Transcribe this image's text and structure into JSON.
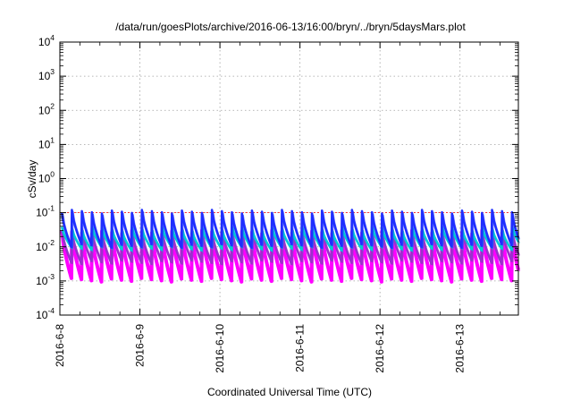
{
  "chart_data": {
    "type": "line",
    "title": "/data/run/goesPlots/archive/2016-06-13/16:00/bryn/../bryn/5daysMars.plot",
    "xlabel": "Coordinated Universal Time (UTC)",
    "ylabel": "cSv/day",
    "yscale": "log",
    "ylim": [
      0.0001,
      10000
    ],
    "xlim": [
      "2016-06-08 00:00",
      "2016-06-13 17:30"
    ],
    "grid": true,
    "x_tick_labels": [
      "2016-6-8",
      "2016-6-9",
      "2016-6-10",
      "2016-6-11",
      "2016-6-12",
      "2016-6-13"
    ],
    "y_ticks": [
      {
        "base": "10",
        "exp": "-4"
      },
      {
        "base": "10",
        "exp": "-3"
      },
      {
        "base": "10",
        "exp": "-2"
      },
      {
        "base": "10",
        "exp": "-1"
      },
      {
        "base": "10",
        "exp": "0"
      },
      {
        "base": "10",
        "exp": "1"
      },
      {
        "base": "10",
        "exp": "2"
      },
      {
        "base": "10",
        "exp": "3"
      },
      {
        "base": "10",
        "exp": "4"
      }
    ],
    "reference_line": {
      "y": 0.1,
      "color": "#ff0000"
    },
    "cycle_hours": 3,
    "series_summary": [
      {
        "color": "#1f2fff",
        "peak": 0.12,
        "trough": 0.012
      },
      {
        "color": "#00c8d8",
        "peak": 0.04,
        "trough": 0.01
      },
      {
        "color": "#9932cc",
        "peak": 0.035,
        "trough": 0.004
      },
      {
        "color": "#ff00ff",
        "peak": 0.03,
        "trough": 0.0012
      }
    ]
  }
}
